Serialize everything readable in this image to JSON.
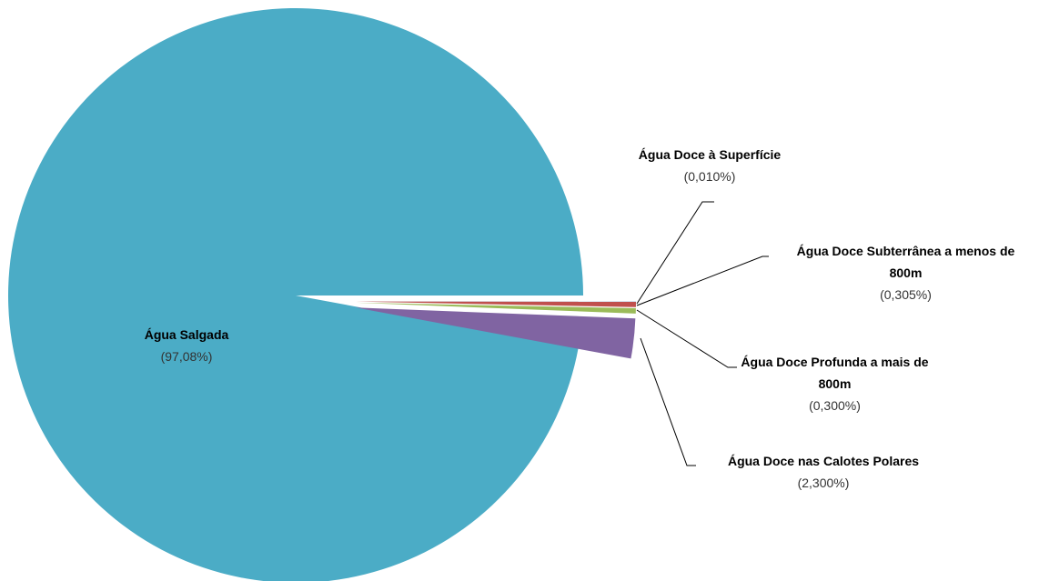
{
  "chart_data": {
    "type": "pie",
    "categories": [
      "Água Salgada",
      "Água Doce à Superfície",
      "Água Doce Subterrânea a menos de 800m",
      "Água Doce Profunda a mais de 800m",
      "Água Doce nas Calotes Polares"
    ],
    "values": [
      97.08,
      0.01,
      0.305,
      0.3,
      2.3
    ],
    "value_labels": [
      "(97,08%)",
      "(0,010%)",
      "(0,305%)",
      "(0,300%)",
      "(2,300%)"
    ],
    "colors": [
      "#4bacc6",
      "#4f81bd",
      "#c0504d",
      "#9bbb59",
      "#8064a2"
    ]
  }
}
